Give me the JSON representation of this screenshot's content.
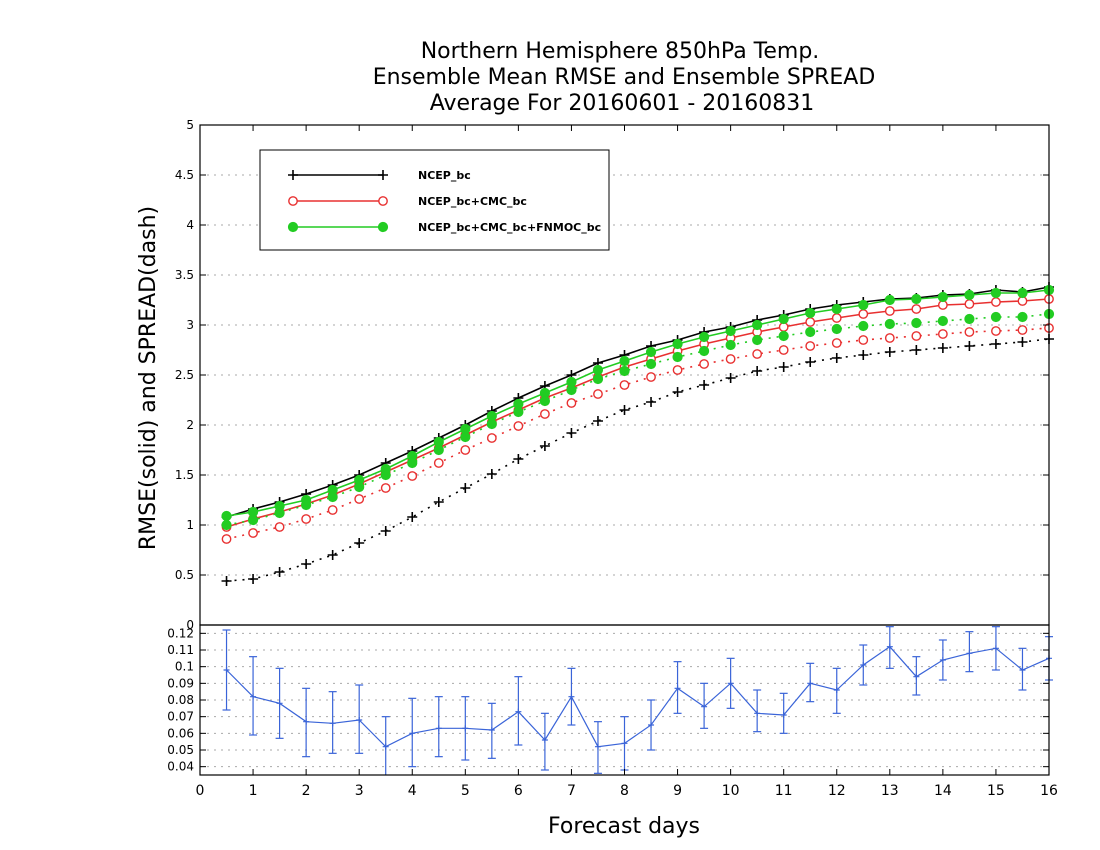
{
  "chart_data": {
    "title_lines": [
      "Northern Hemisphere 850hPa Temp.",
      "Ensemble Mean RMSE and Ensemble SPREAD",
      "Average For 20160601 - 20160831"
    ],
    "type": "line",
    "xlabel": "Forecast days",
    "ylabel": "RMSE(solid) and SPREAD(dash)",
    "xlim": [
      0,
      16
    ],
    "ylim": [
      0,
      5
    ],
    "x_ticks": [
      "0",
      "1",
      "2",
      "3",
      "4",
      "5",
      "6",
      "7",
      "8",
      "9",
      "10",
      "11",
      "12",
      "13",
      "14",
      "15",
      "16"
    ],
    "y_ticks": [
      "0",
      "0.5",
      "1",
      "1.5",
      "2",
      "2.5",
      "3",
      "3.5",
      "4",
      "4.5",
      "5"
    ],
    "x": [
      0.5,
      1,
      1.5,
      2,
      2.5,
      3,
      3.5,
      4,
      4.5,
      5,
      5.5,
      6,
      6.5,
      7,
      7.5,
      8,
      8.5,
      9,
      9.5,
      10,
      10.5,
      11,
      11.5,
      12,
      12.5,
      13,
      13.5,
      14,
      14.5,
      15,
      15.5,
      16
    ],
    "series": [
      {
        "name": "NCEP_bc",
        "color": "#000000",
        "marker": "plus",
        "rmse": [
          1.08,
          1.16,
          1.23,
          1.31,
          1.4,
          1.5,
          1.62,
          1.74,
          1.87,
          2.0,
          2.14,
          2.27,
          2.39,
          2.5,
          2.62,
          2.7,
          2.79,
          2.85,
          2.93,
          2.98,
          3.05,
          3.1,
          3.16,
          3.2,
          3.23,
          3.26,
          3.27,
          3.3,
          3.31,
          3.35,
          3.33,
          3.38
        ],
        "spread": [
          0.44,
          0.46,
          0.53,
          0.61,
          0.7,
          0.82,
          0.94,
          1.08,
          1.23,
          1.37,
          1.51,
          1.66,
          1.79,
          1.92,
          2.04,
          2.15,
          2.23,
          2.33,
          2.4,
          2.47,
          2.54,
          2.58,
          2.63,
          2.67,
          2.7,
          2.73,
          2.75,
          2.77,
          2.79,
          2.81,
          2.83,
          2.86
        ]
      },
      {
        "name": "NCEP_bc+CMC_bc",
        "color": "#e83030",
        "marker": "open-circle",
        "rmse": [
          0.98,
          1.06,
          1.13,
          1.21,
          1.3,
          1.41,
          1.53,
          1.65,
          1.77,
          1.9,
          2.03,
          2.15,
          2.27,
          2.37,
          2.48,
          2.58,
          2.66,
          2.74,
          2.81,
          2.87,
          2.93,
          2.98,
          3.03,
          3.07,
          3.11,
          3.14,
          3.16,
          3.2,
          3.21,
          3.23,
          3.24,
          3.26
        ],
        "spread": [
          0.86,
          0.92,
          0.98,
          1.06,
          1.15,
          1.26,
          1.37,
          1.49,
          1.62,
          1.75,
          1.87,
          1.99,
          2.11,
          2.22,
          2.31,
          2.4,
          2.48,
          2.55,
          2.61,
          2.66,
          2.71,
          2.75,
          2.79,
          2.82,
          2.85,
          2.87,
          2.89,
          2.91,
          2.93,
          2.94,
          2.95,
          2.97
        ]
      },
      {
        "name": "NCEP_bc+CMC_bc+FNMOC_bc",
        "color": "#22cc22",
        "marker": "filled-circle",
        "rmse": [
          1.09,
          1.13,
          1.19,
          1.25,
          1.35,
          1.45,
          1.56,
          1.69,
          1.83,
          1.96,
          2.09,
          2.21,
          2.32,
          2.43,
          2.55,
          2.64,
          2.73,
          2.81,
          2.88,
          2.94,
          3.0,
          3.06,
          3.12,
          3.16,
          3.2,
          3.25,
          3.26,
          3.28,
          3.3,
          3.32,
          3.32,
          3.35
        ],
        "spread": [
          1.0,
          1.05,
          1.12,
          1.2,
          1.28,
          1.38,
          1.5,
          1.62,
          1.75,
          1.88,
          2.01,
          2.13,
          2.24,
          2.35,
          2.46,
          2.54,
          2.61,
          2.68,
          2.74,
          2.8,
          2.85,
          2.89,
          2.93,
          2.96,
          2.99,
          3.01,
          3.02,
          3.04,
          3.06,
          3.08,
          3.08,
          3.11
        ]
      }
    ],
    "lower_panel": {
      "ylim": [
        0.035,
        0.125
      ],
      "y_ticks": [
        "0.04",
        "0.05",
        "0.06",
        "0.07",
        "0.08",
        "0.09",
        "0.1",
        "0.11",
        "0.12"
      ],
      "color": "#3a64d8",
      "x": [
        0.5,
        1,
        1.5,
        2,
        2.5,
        3,
        3.5,
        4,
        4.5,
        5,
        5.5,
        6,
        6.5,
        7,
        7.5,
        8,
        8.5,
        9,
        9.5,
        10,
        10.5,
        11,
        11.5,
        12,
        12.5,
        13,
        13.5,
        14,
        14.5,
        15,
        15.5,
        16
      ],
      "values": [
        0.098,
        0.082,
        0.078,
        0.067,
        0.066,
        0.068,
        0.052,
        0.06,
        0.063,
        0.063,
        0.062,
        0.073,
        0.056,
        0.082,
        0.052,
        0.054,
        0.065,
        0.087,
        0.076,
        0.09,
        0.072,
        0.071,
        0.09,
        0.086,
        0.101,
        0.112,
        0.094,
        0.104,
        0.108,
        0.111,
        0.098,
        0.105
      ],
      "err_low": [
        0.074,
        0.059,
        0.057,
        0.046,
        0.048,
        0.048,
        0.034,
        0.04,
        0.046,
        0.044,
        0.045,
        0.053,
        0.038,
        0.065,
        0.036,
        0.038,
        0.05,
        0.072,
        0.063,
        0.075,
        0.061,
        0.06,
        0.079,
        0.072,
        0.089,
        0.099,
        0.083,
        0.092,
        0.097,
        0.098,
        0.086,
        0.092
      ],
      "err_high": [
        0.122,
        0.106,
        0.099,
        0.087,
        0.085,
        0.089,
        0.07,
        0.081,
        0.082,
        0.082,
        0.078,
        0.094,
        0.072,
        0.099,
        0.067,
        0.07,
        0.08,
        0.103,
        0.09,
        0.105,
        0.086,
        0.084,
        0.102,
        0.099,
        0.113,
        0.124,
        0.106,
        0.116,
        0.121,
        0.124,
        0.111,
        0.118
      ]
    }
  }
}
